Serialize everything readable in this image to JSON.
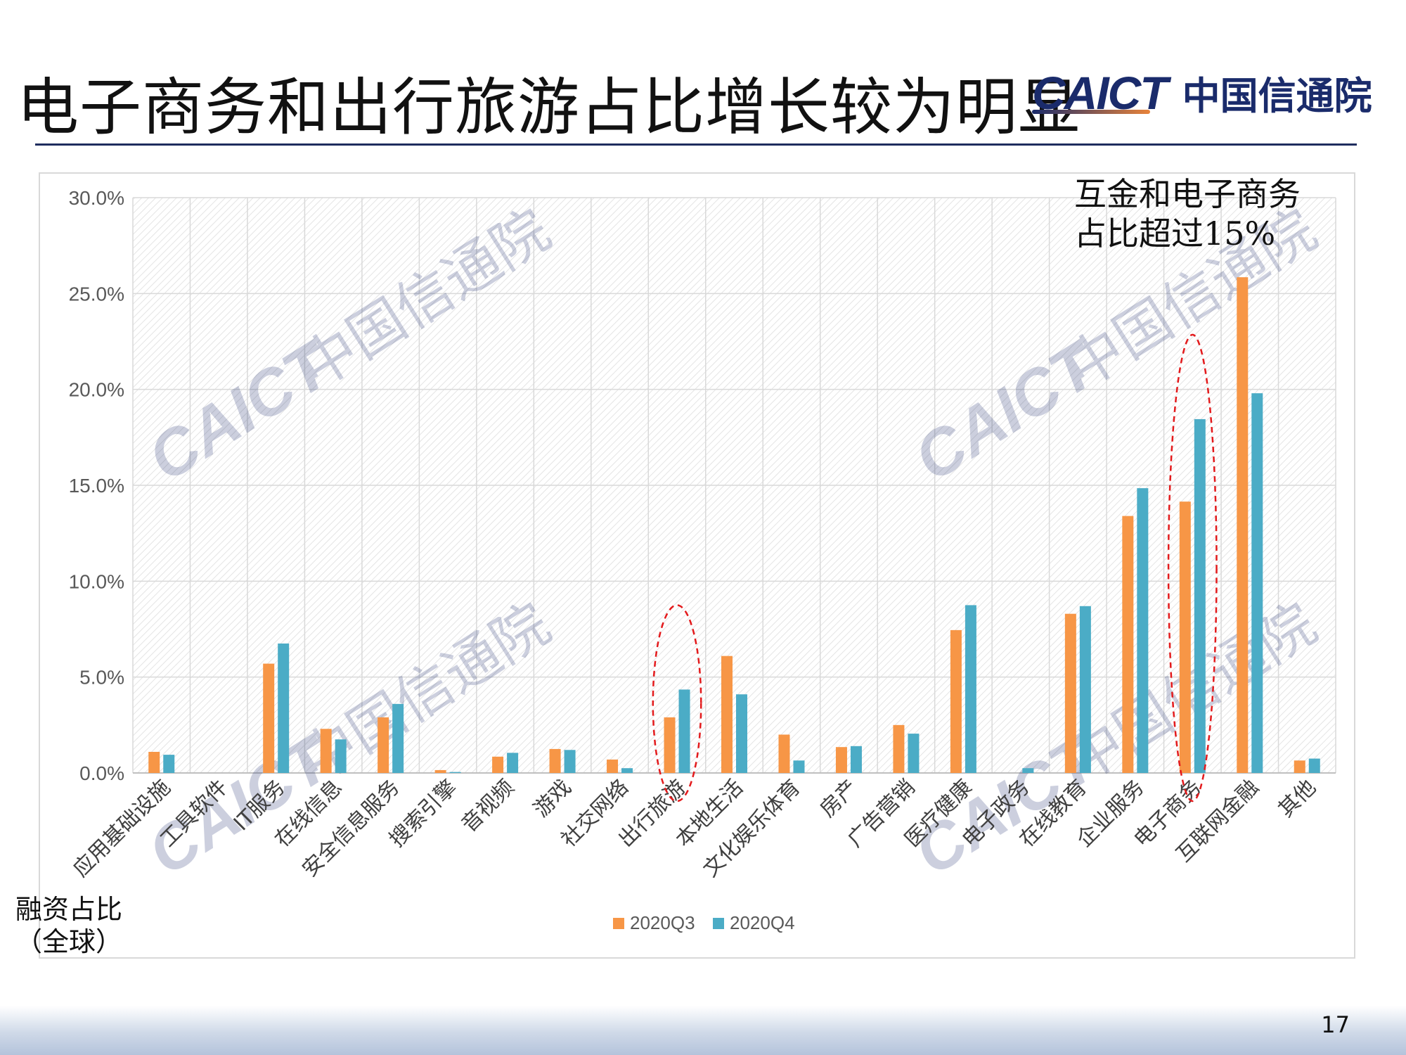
{
  "slide": {
    "title": "电子商务和出行旅游占比增长较为明显",
    "page_number": "17",
    "side_note": "融资占比（全球）"
  },
  "logo": {
    "word": "CAICT",
    "cn": "中国信通院"
  },
  "callout": {
    "line1": "互金和电子商务",
    "line2": "占比超过15%"
  },
  "watermark": {
    "word": "CAICT",
    "cn": "中国信通院"
  },
  "colors": {
    "series_q3": "#f79646",
    "series_q4": "#4bacc6",
    "title_rule": "#1f2d5e",
    "highlight": "#e31a1c",
    "logo_blue": "#1a2b6b"
  },
  "chart_data": {
    "type": "bar",
    "categories": [
      "应用基础设施",
      "工具软件",
      "IT服务",
      "在线信息",
      "安全信息服务",
      "搜索引擎",
      "音视频",
      "游戏",
      "社交网络",
      "出行旅游",
      "本地生活",
      "文化娱乐体育",
      "房产",
      "广告营销",
      "医疗健康",
      "电子政务",
      "在线教育",
      "企业服务",
      "电子商务",
      "互联网金融",
      "其他"
    ],
    "series": [
      {
        "name": "2020Q3",
        "values": [
          1.1,
          0.0,
          5.7,
          2.3,
          2.9,
          0.15,
          0.85,
          1.25,
          0.7,
          2.9,
          6.1,
          2.0,
          1.35,
          2.5,
          7.45,
          0.0,
          8.3,
          13.4,
          14.15,
          25.85,
          0.65
        ]
      },
      {
        "name": "2020Q4",
        "values": [
          0.95,
          0.0,
          6.75,
          1.75,
          3.6,
          0.05,
          1.05,
          1.2,
          0.25,
          4.35,
          4.1,
          0.65,
          1.4,
          2.05,
          8.75,
          0.25,
          8.7,
          14.85,
          18.45,
          19.8,
          0.75
        ]
      }
    ],
    "ylim": [
      0,
      30
    ],
    "yticks": [
      "0.0%",
      "5.0%",
      "10.0%",
      "15.0%",
      "20.0%",
      "25.0%",
      "30.0%"
    ],
    "grid": true,
    "legend_position": "bottom",
    "highlighted_categories": [
      "出行旅游",
      "电子商务"
    ]
  }
}
